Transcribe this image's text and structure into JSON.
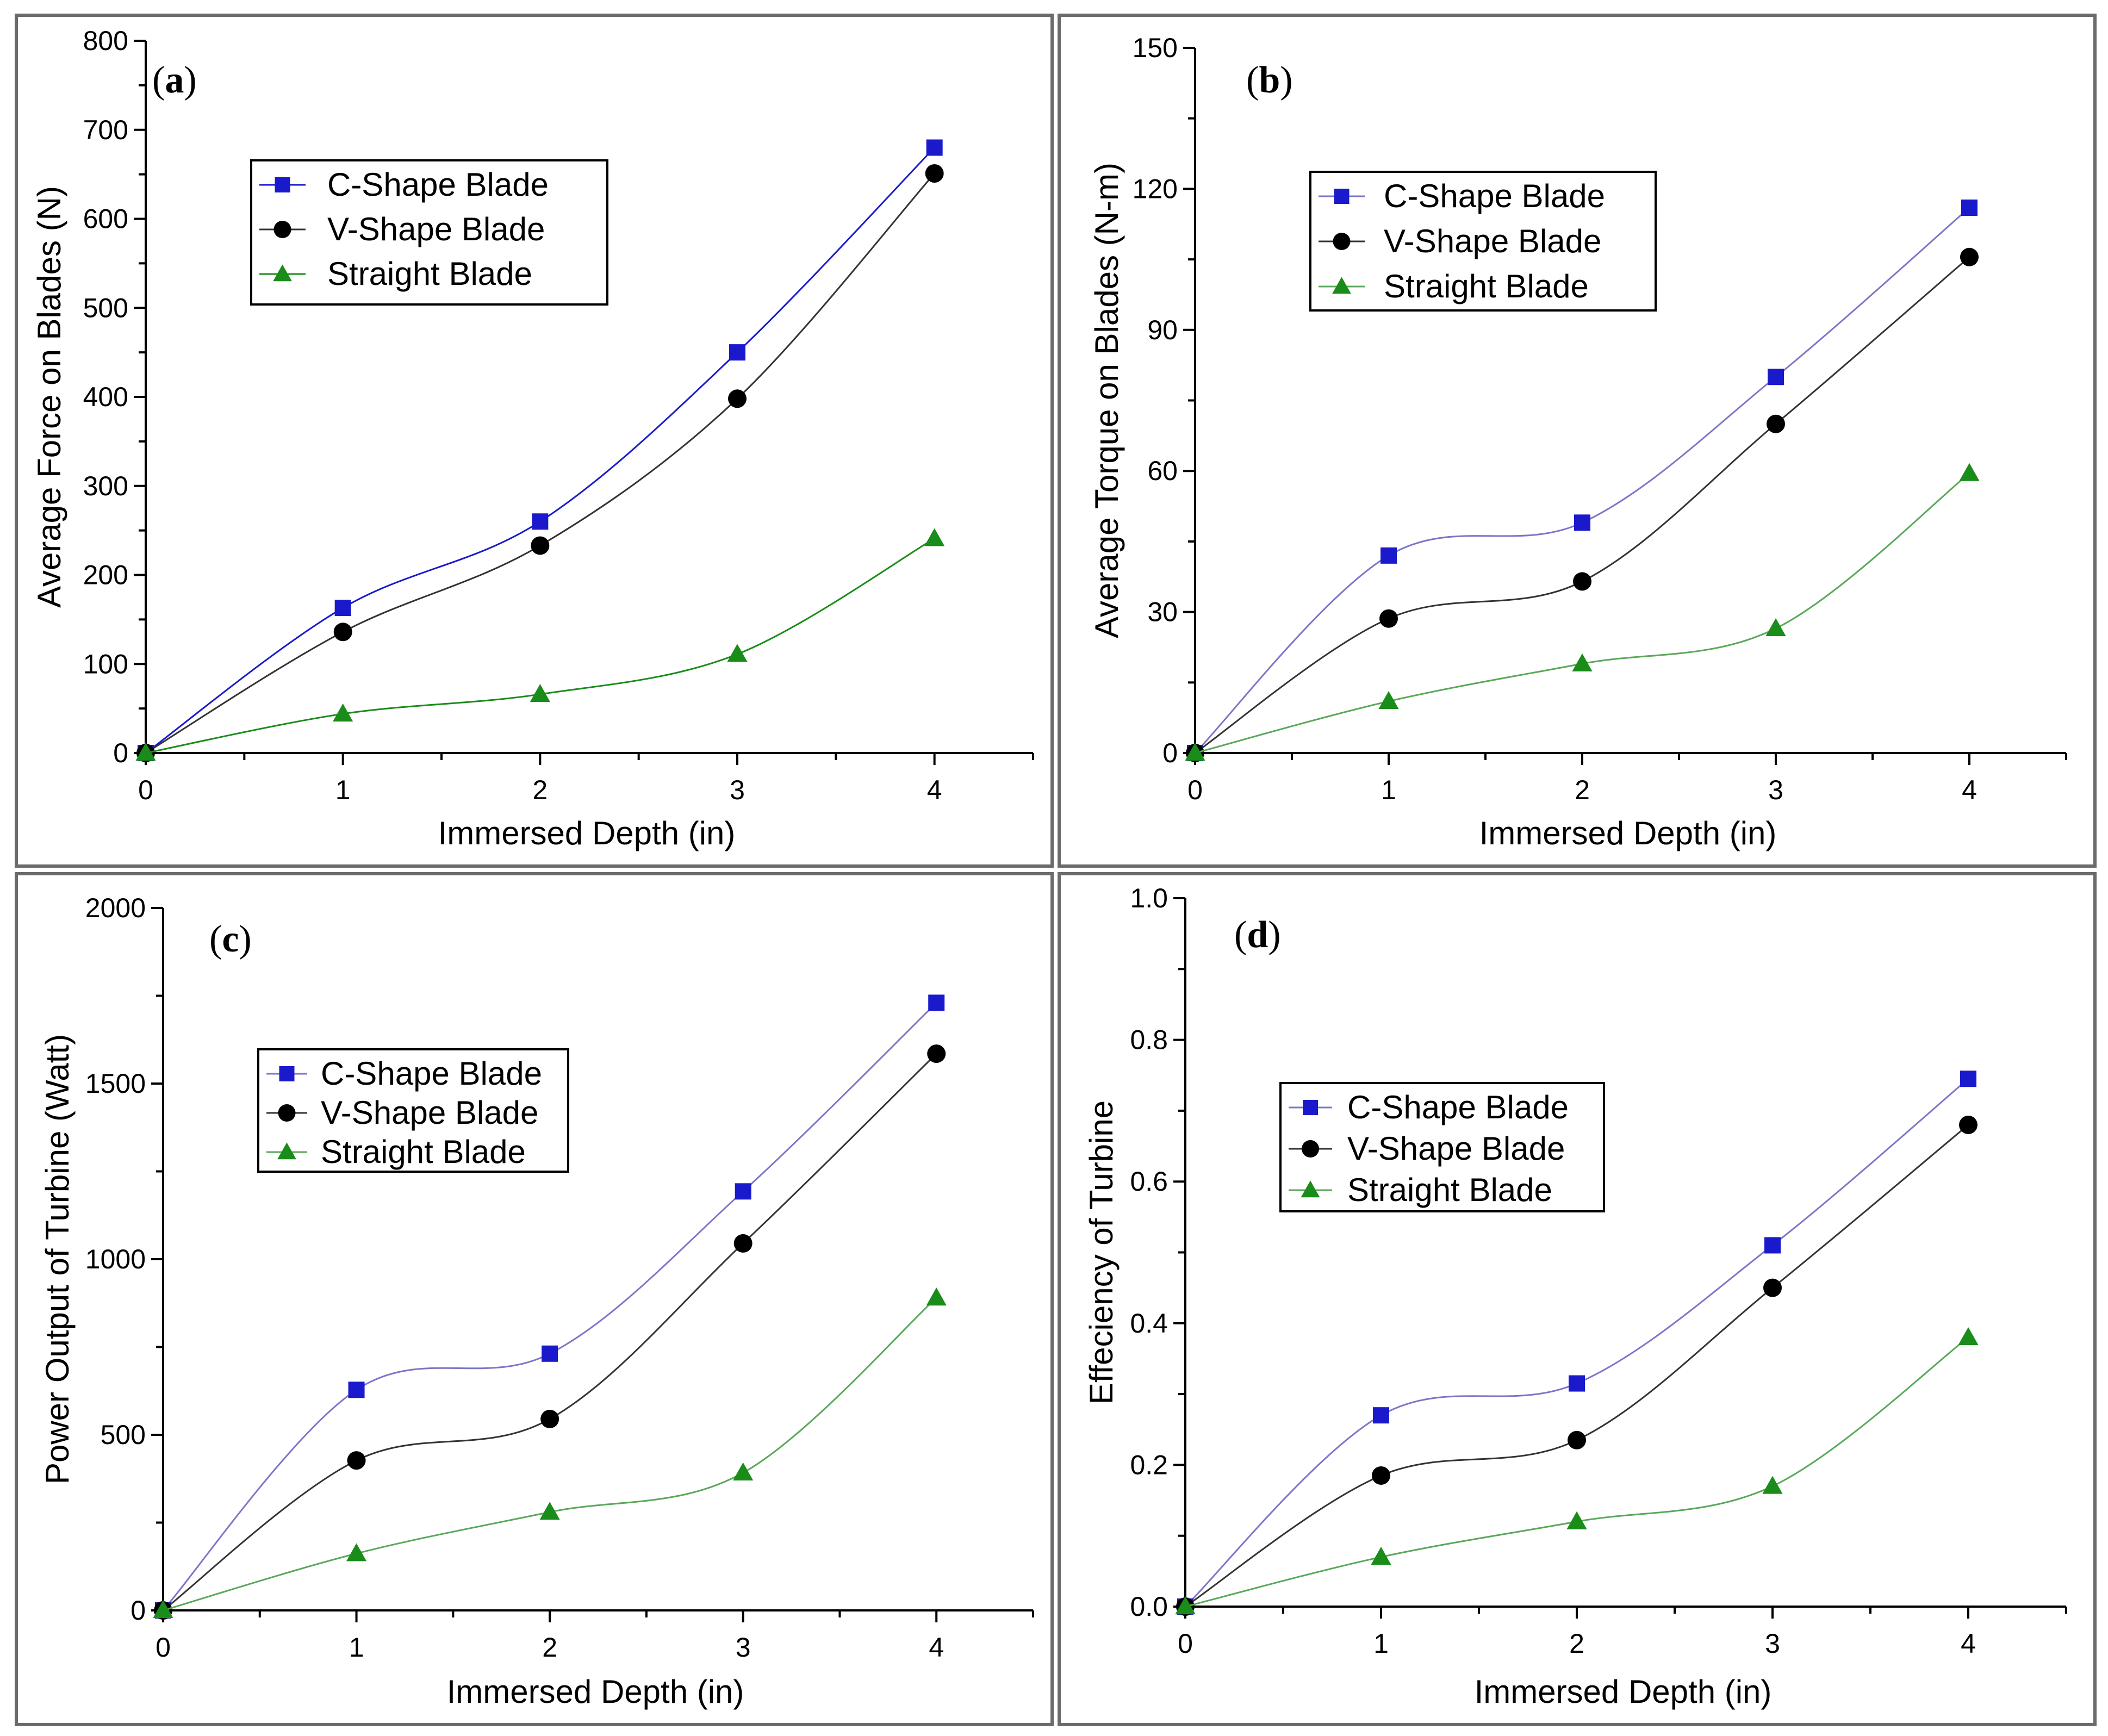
{
  "figure": {
    "colors": {
      "c_shape": "#1a1acc",
      "v_shape": "#000000",
      "straight": "#1a8c1a",
      "c_shape_line_b": "#7b76c8",
      "straight_line_light": "#5aa85a"
    },
    "shared": {
      "xlabel": "Immersed Depth (in)",
      "series_names": [
        "C-Shape Blade",
        "V-Shape Blade",
        "Straight Blade"
      ]
    }
  },
  "chart_data": [
    {
      "id": "a",
      "type": "line",
      "panel_label": "a",
      "title": "",
      "xlabel": "Immersed Depth (in)",
      "ylabel": "Average Force on Blades (N)",
      "xlim": [
        0,
        4.5
      ],
      "ylim": [
        0,
        800
      ],
      "xticks": [
        0,
        1,
        2,
        3,
        4
      ],
      "yticks": [
        0,
        100,
        200,
        300,
        400,
        500,
        600,
        700,
        800
      ],
      "ytick_labels": [
        "0",
        "100",
        "200",
        "300",
        "400",
        "500",
        "600",
        "700",
        "800"
      ],
      "legend_position": "upper-left",
      "x": [
        0,
        1,
        2,
        3,
        4
      ],
      "series": [
        {
          "name": "C-Shape Blade",
          "marker": "square",
          "values": [
            0,
            163,
            260,
            450,
            680
          ]
        },
        {
          "name": "V-Shape Blade",
          "marker": "circle",
          "values": [
            0,
            136,
            233,
            398,
            651
          ]
        },
        {
          "name": "Straight Blade",
          "marker": "triangle",
          "values": [
            0,
            44,
            66,
            111,
            241
          ]
        }
      ]
    },
    {
      "id": "b",
      "type": "line",
      "panel_label": "b",
      "title": "",
      "xlabel": "Immersed Depth (in)",
      "ylabel": "Average Torque on Blades (N-m)",
      "xlim": [
        0,
        4.5
      ],
      "ylim": [
        0,
        150
      ],
      "xticks": [
        0,
        1,
        2,
        3,
        4
      ],
      "yticks": [
        0,
        30,
        60,
        90,
        120,
        150
      ],
      "ytick_labels": [
        "0",
        "30",
        "60",
        "90",
        "120",
        "150"
      ],
      "legend_position": "upper-left",
      "x": [
        0,
        1,
        2,
        3,
        4
      ],
      "series": [
        {
          "name": "C-Shape Blade",
          "marker": "square",
          "values": [
            0,
            42,
            49,
            80,
            116
          ]
        },
        {
          "name": "V-Shape Blade",
          "marker": "circle",
          "values": [
            0,
            28.6,
            36.5,
            70,
            105.5
          ]
        },
        {
          "name": "Straight Blade",
          "marker": "triangle",
          "values": [
            0,
            11,
            19,
            26.5,
            59.5
          ]
        }
      ]
    },
    {
      "id": "c",
      "type": "line",
      "panel_label": "c",
      "title": "",
      "xlabel": "Immersed Depth (in)",
      "ylabel": "Power Output of Turbine (Watt)",
      "xlim": [
        0,
        4.5
      ],
      "ylim": [
        0,
        2000
      ],
      "xticks": [
        0,
        1,
        2,
        3,
        4
      ],
      "yticks": [
        0,
        500,
        1000,
        1500,
        2000
      ],
      "ytick_labels": [
        "0",
        "500",
        "1000",
        "1500",
        "2000"
      ],
      "legend_position": "center-left",
      "x": [
        0,
        1,
        2,
        3,
        4
      ],
      "series": [
        {
          "name": "C-Shape Blade",
          "marker": "square",
          "values": [
            0,
            628,
            731,
            1193,
            1730
          ]
        },
        {
          "name": "V-Shape Blade",
          "marker": "circle",
          "values": [
            0,
            427,
            545,
            1045,
            1585
          ]
        },
        {
          "name": "Straight Blade",
          "marker": "triangle",
          "values": [
            0,
            162,
            280,
            392,
            890
          ]
        }
      ]
    },
    {
      "id": "d",
      "type": "line",
      "panel_label": "d",
      "title": "",
      "xlabel": "Immersed Depth (in)",
      "ylabel": "Effeciency of Turbine",
      "xlim": [
        0,
        4.5
      ],
      "ylim": [
        0,
        1.0
      ],
      "xticks": [
        0,
        1,
        2,
        3,
        4
      ],
      "yticks": [
        0,
        0.2,
        0.4,
        0.6,
        0.8,
        1.0
      ],
      "ytick_labels": [
        "0.0",
        "0.2",
        "0.4",
        "0.6",
        "0.8",
        "1.0"
      ],
      "legend_position": "center-left",
      "x": [
        0,
        1,
        2,
        3,
        4
      ],
      "series": [
        {
          "name": "C-Shape Blade",
          "marker": "square",
          "values": [
            0,
            0.27,
            0.315,
            0.51,
            0.745
          ]
        },
        {
          "name": "V-Shape Blade",
          "marker": "circle",
          "values": [
            0,
            0.185,
            0.235,
            0.45,
            0.68
          ]
        },
        {
          "name": "Straight Blade",
          "marker": "triangle",
          "values": [
            0,
            0.07,
            0.12,
            0.17,
            0.38
          ]
        }
      ]
    }
  ]
}
